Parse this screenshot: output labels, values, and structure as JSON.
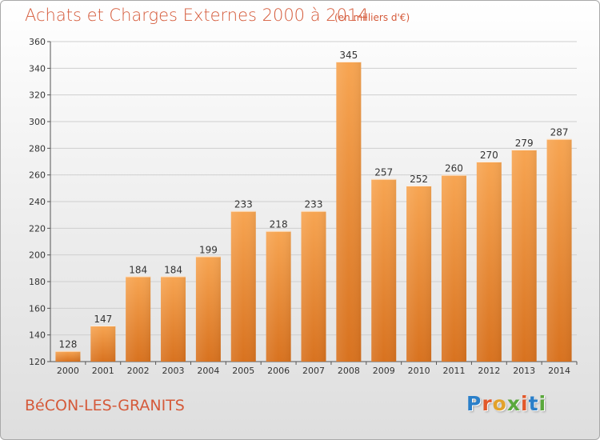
{
  "header": {
    "title": "Achats et Charges Externes 2000 à 2014",
    "subtitle": "(en milliers d'€)"
  },
  "footer": {
    "city": "BéCON-LES-GRANITS",
    "logo": [
      "P",
      "r",
      "o",
      "x",
      "i",
      "t",
      "i"
    ],
    "logo_colors": [
      "#2a7fc9",
      "#e2582a",
      "#e2a22a",
      "#5aa83c",
      "#e2582a",
      "#2a7fc9",
      "#5aa83c"
    ]
  },
  "chart_data": {
    "type": "bar",
    "categories": [
      "2000",
      "2001",
      "2002",
      "2003",
      "2004",
      "2005",
      "2006",
      "2007",
      "2008",
      "2009",
      "2010",
      "2011",
      "2012",
      "2013",
      "2014"
    ],
    "values": [
      128,
      147,
      184,
      184,
      199,
      233,
      218,
      233,
      345,
      257,
      252,
      260,
      270,
      279,
      287
    ],
    "ylim": [
      120,
      360
    ],
    "yticks": [
      120,
      140,
      160,
      180,
      200,
      220,
      240,
      260,
      280,
      300,
      320,
      340,
      360
    ],
    "grid": true,
    "bar_color": "#f0923a"
  }
}
